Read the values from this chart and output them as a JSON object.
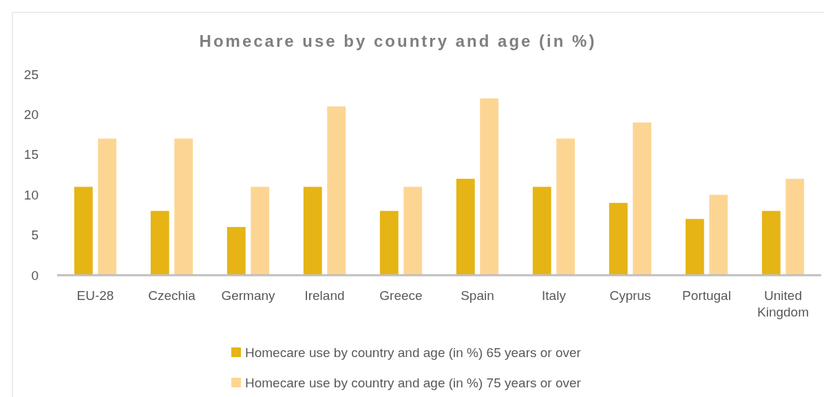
{
  "chart_data": {
    "type": "bar",
    "title": "Homecare use by country and age (in %)",
    "categories": [
      "EU-28",
      "Czechia",
      "Germany",
      "Ireland",
      "Greece",
      "Spain",
      "Italy",
      "Cyprus",
      "Portugal",
      "United Kingdom"
    ],
    "series": [
      {
        "name": "Homecare use by country and age (in %) 65 years or over",
        "color": "#e6b414",
        "values": [
          11,
          8,
          6,
          11,
          8,
          12,
          11,
          9,
          7,
          8
        ]
      },
      {
        "name": "Homecare use by country and age (in %) 75 years or over",
        "color": "#fdd593",
        "values": [
          17,
          17,
          11,
          21,
          11,
          22,
          17,
          19,
          10,
          12
        ]
      }
    ],
    "ylim": [
      0,
      25
    ],
    "yticks": [
      0,
      5,
      10,
      15,
      20,
      25
    ],
    "grid": false,
    "legend": "bottom"
  }
}
